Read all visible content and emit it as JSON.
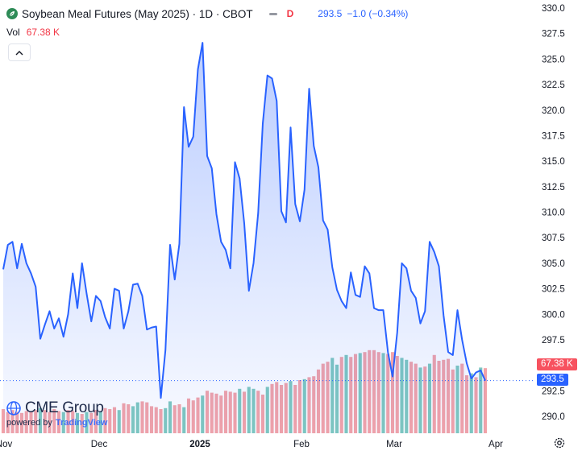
{
  "header": {
    "title": "Soybean Meal Futures (May 2025) · 1D · CBOT",
    "status_letter": "D",
    "last_price": "293.5",
    "change": "−1.0 (−0.34%)",
    "volume_label": "Vol",
    "volume_value": "67.38 K",
    "icon": "soybean-leaf-icon"
  },
  "badges": {
    "volume": "67.38 K",
    "price": "293.5"
  },
  "watermark": {
    "brand": "CME Group",
    "powered": "powered by",
    "tv": "TradingView"
  },
  "colors": {
    "line": "#2962ff",
    "area_top": "#bfcdf5",
    "vol_up": "#7fc8bf",
    "vol_down": "#f3a3a8",
    "badge_vol": "#f7525f",
    "badge_price": "#2962ff"
  },
  "chart_data": {
    "type": "area",
    "ylim": [
      289,
      330
    ],
    "y_ticks": [
      "290.0",
      "292.5",
      "295.0",
      "297.5",
      "300.0",
      "302.5",
      "305.0",
      "307.5",
      "310.0",
      "312.5",
      "315.0",
      "317.5",
      "320.0",
      "322.5",
      "325.0",
      "327.5",
      "330.0"
    ],
    "x_ticks": [
      "Nov",
      "Dec",
      "2025",
      "Feb",
      "Mar",
      "Apr"
    ],
    "grid": false,
    "series": [
      {
        "values": [
          304.4,
          306.8,
          307.1,
          304.5,
          306.9,
          305.0,
          304.0,
          302.7,
          297.6,
          299.0,
          300.3,
          298.6,
          299.6,
          297.8,
          300.0,
          304.0,
          300.6,
          305.0,
          302.0,
          299.3,
          301.8,
          301.3,
          299.7,
          298.6,
          302.5,
          302.3,
          298.6,
          300.3,
          302.9,
          303.0,
          301.8,
          298.5,
          298.7,
          298.8,
          291.8,
          296.5,
          306.8,
          303.4,
          306.9,
          320.3,
          316.4,
          317.4,
          324.0,
          326.6,
          315.5,
          314.3,
          309.8,
          307.1,
          306.3,
          304.5,
          314.9,
          313.3,
          308.9,
          302.3,
          305.0,
          309.9,
          318.7,
          323.4,
          323.1,
          320.9,
          310.1,
          309.0,
          318.3,
          310.8,
          309.1,
          312.2,
          322.1,
          316.5,
          314.4,
          309.2,
          308.3,
          304.6,
          302.4,
          301.3,
          300.6,
          304.1,
          301.9,
          301.7,
          304.7,
          304.0,
          300.6,
          300.4,
          300.4,
          296.3,
          293.9,
          298.2,
          305.0,
          304.5,
          302.3,
          301.6,
          299.1,
          300.3,
          307.1,
          306.1,
          304.7,
          299.9,
          296.3,
          296.0,
          300.4,
          297.5,
          295.2,
          293.7,
          294.3,
          294.5,
          293.5
        ]
      }
    ],
    "volume": {
      "values": [
        25,
        22,
        24,
        22,
        21,
        23,
        22,
        24,
        26,
        24,
        22,
        25,
        23,
        22,
        24,
        23,
        21,
        20,
        22,
        21,
        24,
        23,
        26,
        25,
        27,
        24,
        31,
        30,
        28,
        32,
        33,
        32,
        28,
        27,
        25,
        26,
        33,
        29,
        30,
        27,
        36,
        34,
        37,
        39,
        44,
        42,
        41,
        39,
        44,
        43,
        42,
        46,
        43,
        48,
        46,
        44,
        40,
        48,
        51,
        53,
        50,
        52,
        54,
        50,
        55,
        56,
        58,
        59,
        66,
        72,
        74,
        78,
        71,
        79,
        81,
        79,
        82,
        83,
        84,
        86,
        86,
        84,
        83,
        82,
        84,
        80,
        78,
        76,
        74,
        72,
        68,
        69,
        72,
        81,
        75,
        76,
        77,
        66,
        70,
        72,
        60,
        62,
        58,
        68,
        67.38
      ],
      "up": [
        false,
        false,
        false,
        false,
        false,
        false,
        false,
        false,
        true,
        false,
        false,
        false,
        false,
        true,
        false,
        false,
        true,
        false,
        true,
        false,
        false,
        true,
        false,
        false,
        false,
        true,
        false,
        false,
        true,
        true,
        false,
        false,
        false,
        false,
        false,
        true,
        true,
        false,
        false,
        true,
        false,
        false,
        false,
        true,
        false,
        false,
        false,
        false,
        false,
        false,
        false,
        true,
        false,
        true,
        true,
        false,
        false,
        true,
        false,
        false,
        false,
        false,
        true,
        false,
        false,
        true,
        false,
        false,
        false,
        false,
        false,
        true,
        true,
        false,
        true,
        false,
        false,
        true,
        false,
        false,
        false,
        false,
        true,
        false,
        false,
        false,
        true,
        true,
        false,
        false,
        true,
        false,
        true,
        false,
        false,
        false,
        false,
        false,
        true,
        false,
        false,
        true,
        false,
        true,
        false
      ]
    }
  }
}
